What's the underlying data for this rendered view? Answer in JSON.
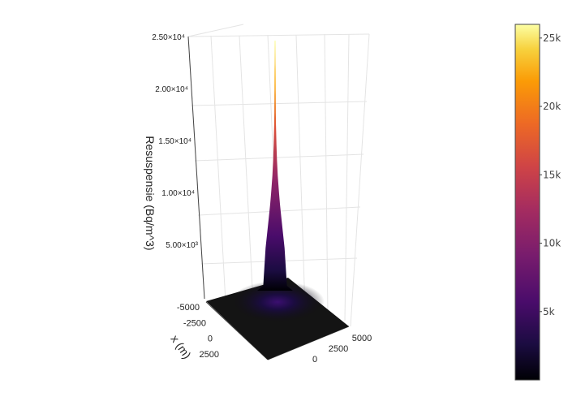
{
  "chart_data": {
    "type": "surface",
    "title": "",
    "z_label": "Resuspensie (Bq/m^3)",
    "x_label": "x (m)",
    "y_label": "",
    "z_ticks": [
      5000,
      10000,
      15000,
      20000,
      25000
    ],
    "z_tick_labels": [
      "5.00×10³",
      "1.00×10⁴",
      "1.50×10⁴",
      "2.00×10⁴",
      "2.50×10⁴"
    ],
    "x_tick_labels": [
      "-5000",
      "-2500",
      "0",
      "2500"
    ],
    "y_tick_labels": [
      "0",
      "2500",
      "5000"
    ],
    "x_range": [
      -5000,
      5000
    ],
    "y_range": [
      -5000,
      5000
    ],
    "z_range": [
      0,
      25000
    ],
    "peak": {
      "x": 0,
      "y": 0,
      "z": 25000
    },
    "colorbar": {
      "colorscale": "inferno",
      "range": [
        0,
        26000
      ],
      "ticks": [
        5000,
        10000,
        15000,
        20000,
        25000
      ],
      "tick_labels": [
        "5k",
        "10k",
        "15k",
        "20k",
        "25k"
      ]
    },
    "colors": {
      "low": "#000004",
      "mid_low": "#420a68",
      "mid": "#932667",
      "mid_high": "#dd513a",
      "high_orange": "#fca50a",
      "top": "#fcffa4"
    }
  }
}
